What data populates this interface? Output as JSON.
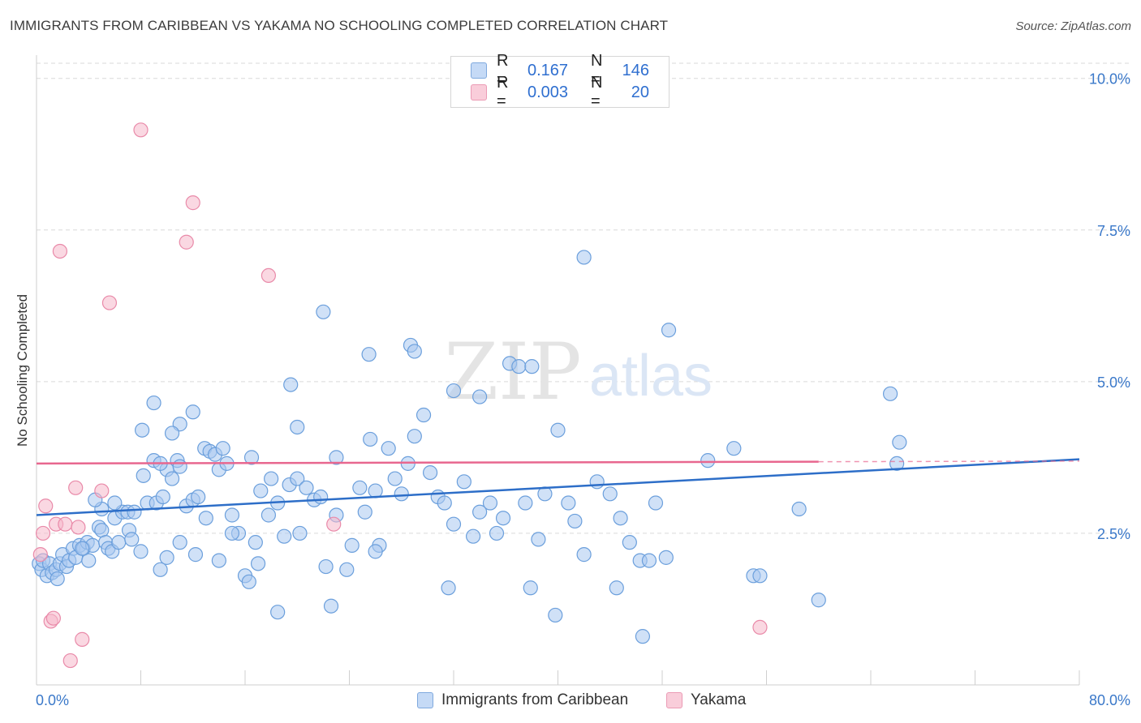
{
  "header": {
    "title": "IMMIGRANTS FROM CARIBBEAN VS YAKAMA NO SCHOOLING COMPLETED CORRELATION CHART",
    "source": "Source: ZipAtlas.com"
  },
  "watermark": {
    "zip": "ZIP",
    "atlas": "atlas"
  },
  "legend": {
    "rows": [
      {
        "r_label": "R =",
        "r_value": "0.167",
        "n_label": "N =",
        "n_value": "146",
        "color": "#a9c8f0"
      },
      {
        "r_label": "R =",
        "r_value": "0.003",
        "n_label": "N =",
        "n_value": "20",
        "color": "#f6b8cb"
      }
    ]
  },
  "bottom_legend": {
    "series1": "Immigrants from Caribbean",
    "series2": "Yakama"
  },
  "colors": {
    "blue_fill": "#a9c8f0",
    "blue_stroke": "#6b9fdc",
    "blue_line": "#2d6ec8",
    "pink_fill": "#f6b8cb",
    "pink_stroke": "#e98aa9",
    "pink_line": "#e8678f",
    "axis_text": "#3a78c9",
    "grid": "#d9d9d9"
  },
  "chart_data": {
    "type": "scatter",
    "title": "IMMIGRANTS FROM CARIBBEAN VS YAKAMA NO SCHOOLING COMPLETED CORRELATION CHART",
    "xlabel": "",
    "ylabel": "No Schooling Completed",
    "xlim": [
      0,
      80
    ],
    "ylim": [
      0,
      10.25
    ],
    "x_tick_labels": [
      "0.0%",
      "80.0%"
    ],
    "y_ticks": [
      2.5,
      5.0,
      7.5,
      10.0
    ],
    "y_tick_labels": [
      "2.5%",
      "5.0%",
      "7.5%",
      "10.0%"
    ],
    "grid": true,
    "legend_position": "top-center",
    "series": [
      {
        "name": "Immigrants from Caribbean",
        "R": 0.167,
        "N": 146,
        "trend": {
          "x": [
            0,
            80
          ],
          "y": [
            2.8,
            3.72
          ]
        },
        "points": [
          [
            0.2,
            2.0
          ],
          [
            0.4,
            1.9
          ],
          [
            0.5,
            2.05
          ],
          [
            0.8,
            1.8
          ],
          [
            1.0,
            2.0
          ],
          [
            1.2,
            1.85
          ],
          [
            1.5,
            1.9
          ],
          [
            1.6,
            1.75
          ],
          [
            1.8,
            2.0
          ],
          [
            2.0,
            2.15
          ],
          [
            2.3,
            1.95
          ],
          [
            2.5,
            2.05
          ],
          [
            2.8,
            2.25
          ],
          [
            3.0,
            2.1
          ],
          [
            3.3,
            2.3
          ],
          [
            3.6,
            2.25
          ],
          [
            3.9,
            2.35
          ],
          [
            4.0,
            2.05
          ],
          [
            4.3,
            2.3
          ],
          [
            4.8,
            2.6
          ],
          [
            5.0,
            2.55
          ],
          [
            5.3,
            2.35
          ],
          [
            5.5,
            2.25
          ],
          [
            5.8,
            2.2
          ],
          [
            6.0,
            2.75
          ],
          [
            6.3,
            2.35
          ],
          [
            6.6,
            2.85
          ],
          [
            7.0,
            2.85
          ],
          [
            7.1,
            2.55
          ],
          [
            7.3,
            2.4
          ],
          [
            7.5,
            2.85
          ],
          [
            8.0,
            2.2
          ],
          [
            8.2,
            3.45
          ],
          [
            8.5,
            3.0
          ],
          [
            9.0,
            3.7
          ],
          [
            9.2,
            3.0
          ],
          [
            9.7,
            3.1
          ],
          [
            10.0,
            3.55
          ],
          [
            10.4,
            3.4
          ],
          [
            10.8,
            3.7
          ],
          [
            11.0,
            3.6
          ],
          [
            11.5,
            2.95
          ],
          [
            12.0,
            3.05
          ],
          [
            12.4,
            3.1
          ],
          [
            12.9,
            3.9
          ],
          [
            13.3,
            3.85
          ],
          [
            13.7,
            3.8
          ],
          [
            14.0,
            3.55
          ],
          [
            14.3,
            3.9
          ],
          [
            14.6,
            3.65
          ],
          [
            12.0,
            4.5
          ],
          [
            11.0,
            4.3
          ],
          [
            10.4,
            4.15
          ],
          [
            9.5,
            3.65
          ],
          [
            9.0,
            4.65
          ],
          [
            8.1,
            4.2
          ],
          [
            6.0,
            3.0
          ],
          [
            5.0,
            2.9
          ],
          [
            4.5,
            3.05
          ],
          [
            3.5,
            2.25
          ],
          [
            15.0,
            2.8
          ],
          [
            15.5,
            2.5
          ],
          [
            16.0,
            1.8
          ],
          [
            16.3,
            1.7
          ],
          [
            16.8,
            2.35
          ],
          [
            17.2,
            3.2
          ],
          [
            17.8,
            2.8
          ],
          [
            18.0,
            3.4
          ],
          [
            18.5,
            3.0
          ],
          [
            19.0,
            2.45
          ],
          [
            19.4,
            3.3
          ],
          [
            20.0,
            3.4
          ],
          [
            20.2,
            2.5
          ],
          [
            20.7,
            3.25
          ],
          [
            21.3,
            3.05
          ],
          [
            21.8,
            3.1
          ],
          [
            22.2,
            1.95
          ],
          [
            22.6,
            1.3
          ],
          [
            23.0,
            2.8
          ],
          [
            23.8,
            1.9
          ],
          [
            24.2,
            2.3
          ],
          [
            24.8,
            3.25
          ],
          [
            25.2,
            2.85
          ],
          [
            25.6,
            4.05
          ],
          [
            26.0,
            3.2
          ],
          [
            26.3,
            2.3
          ],
          [
            27.0,
            3.9
          ],
          [
            27.5,
            3.4
          ],
          [
            28.0,
            3.15
          ],
          [
            28.5,
            3.65
          ],
          [
            29.0,
            4.1
          ],
          [
            29.7,
            4.45
          ],
          [
            30.2,
            3.5
          ],
          [
            30.8,
            3.1
          ],
          [
            31.3,
            3.0
          ],
          [
            31.6,
            1.6
          ],
          [
            32.0,
            2.65
          ],
          [
            32.8,
            3.35
          ],
          [
            33.5,
            2.45
          ],
          [
            34.0,
            2.85
          ],
          [
            34.8,
            3.0
          ],
          [
            35.3,
            2.5
          ],
          [
            35.8,
            2.75
          ],
          [
            36.3,
            5.3
          ],
          [
            37.0,
            5.25
          ],
          [
            37.5,
            3.0
          ],
          [
            37.9,
            1.6
          ],
          [
            38.5,
            2.4
          ],
          [
            39.0,
            3.15
          ],
          [
            39.8,
            1.15
          ],
          [
            40.0,
            4.2
          ],
          [
            40.8,
            3.0
          ],
          [
            41.3,
            2.7
          ],
          [
            42.0,
            2.15
          ],
          [
            43.0,
            3.35
          ],
          [
            44.0,
            3.15
          ],
          [
            44.8,
            2.75
          ],
          [
            45.5,
            2.35
          ],
          [
            46.3,
            2.05
          ],
          [
            47.0,
            2.05
          ],
          [
            47.5,
            3.0
          ],
          [
            48.3,
            2.1
          ],
          [
            51.5,
            3.7
          ],
          [
            53.5,
            3.9
          ],
          [
            55.0,
            1.8
          ],
          [
            55.5,
            1.8
          ],
          [
            58.5,
            2.9
          ],
          [
            60.0,
            1.4
          ],
          [
            65.5,
            4.8
          ],
          [
            66.0,
            3.65
          ],
          [
            66.2,
            4.0
          ],
          [
            42.0,
            7.05
          ],
          [
            48.5,
            5.85
          ],
          [
            22.0,
            6.15
          ],
          [
            25.5,
            5.45
          ],
          [
            28.7,
            5.6
          ],
          [
            29.0,
            5.5
          ],
          [
            32.0,
            4.85
          ],
          [
            34.0,
            4.75
          ],
          [
            19.5,
            4.95
          ],
          [
            20.0,
            4.25
          ],
          [
            23.0,
            3.75
          ],
          [
            38.0,
            5.25
          ],
          [
            16.5,
            3.75
          ],
          [
            26.0,
            2.2
          ],
          [
            17.0,
            2.0
          ],
          [
            18.5,
            1.2
          ],
          [
            44.5,
            1.6
          ],
          [
            46.5,
            0.8
          ],
          [
            15.0,
            2.5
          ],
          [
            14.0,
            2.05
          ],
          [
            13.0,
            2.75
          ],
          [
            12.2,
            2.15
          ],
          [
            11.0,
            2.35
          ],
          [
            10.0,
            2.1
          ],
          [
            9.5,
            1.9
          ]
        ]
      },
      {
        "name": "Yakama",
        "R": 0.003,
        "N": 20,
        "trend": {
          "x": [
            0,
            60
          ],
          "y": [
            3.65,
            3.68
          ],
          "dashed_to": 80
        },
        "points": [
          [
            0.3,
            2.15
          ],
          [
            0.5,
            2.5
          ],
          [
            0.7,
            2.95
          ],
          [
            1.1,
            1.05
          ],
          [
            1.3,
            1.1
          ],
          [
            1.5,
            2.65
          ],
          [
            1.8,
            7.15
          ],
          [
            2.2,
            2.65
          ],
          [
            3.0,
            3.25
          ],
          [
            3.2,
            2.6
          ],
          [
            3.5,
            0.75
          ],
          [
            2.6,
            0.4
          ],
          [
            5.0,
            3.2
          ],
          [
            5.6,
            6.3
          ],
          [
            8.0,
            9.15
          ],
          [
            11.5,
            7.3
          ],
          [
            12.0,
            7.95
          ],
          [
            17.8,
            6.75
          ],
          [
            22.8,
            2.65
          ],
          [
            55.5,
            0.95
          ]
        ]
      }
    ]
  }
}
